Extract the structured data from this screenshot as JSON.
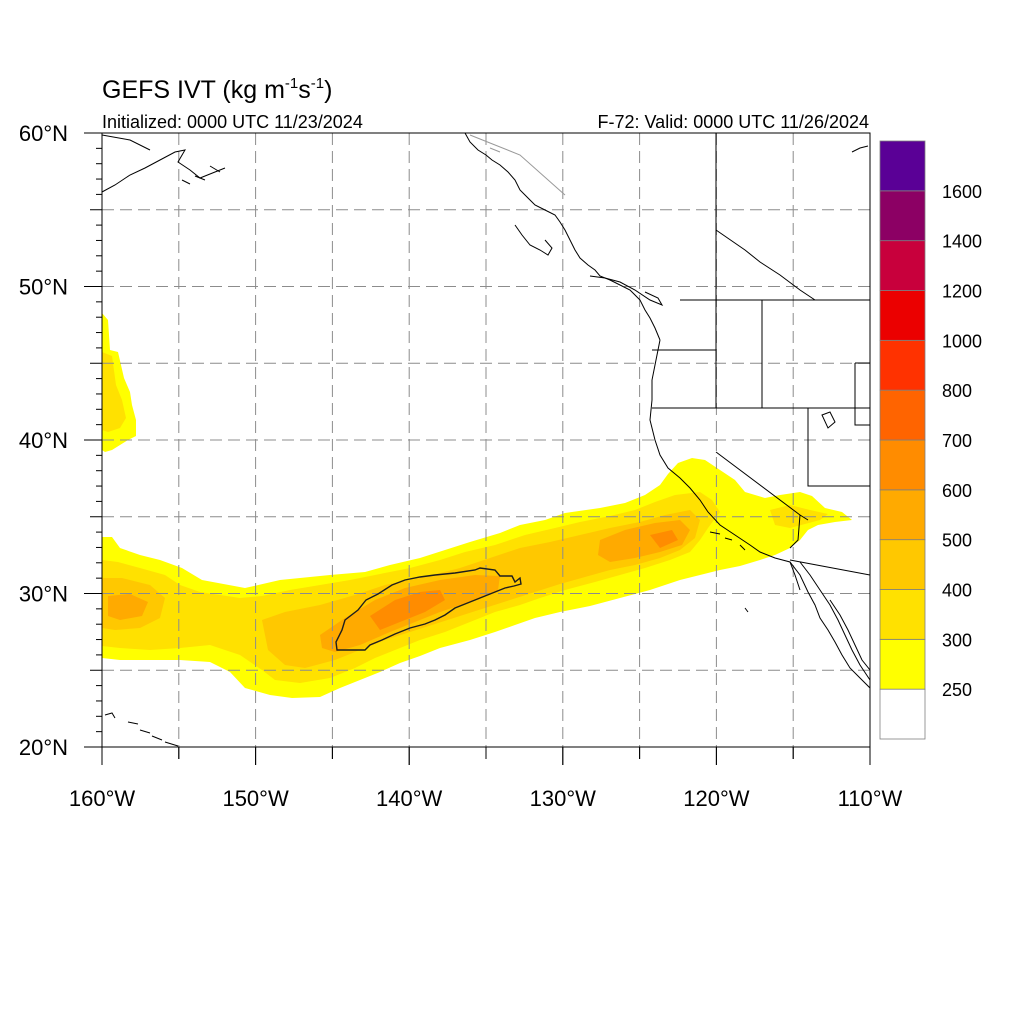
{
  "title": {
    "prefix": "GEFS IVT (kg m",
    "sup1": "-1",
    "mid": "s",
    "sup2": "-1",
    "suffix": ")"
  },
  "initialized": "Initialized: 0000 UTC 11/23/2024",
  "valid": "F-72: Valid: 0000 UTC 11/26/2024",
  "map": {
    "lon_range": [
      -160,
      -110
    ],
    "lat_range": [
      20,
      60
    ],
    "lon_ticks": [
      "160°W",
      "150°W",
      "140°W",
      "130°W",
      "120°W",
      "110°W"
    ],
    "lat_ticks": [
      "20°N",
      "30°N",
      "40°N",
      "50°N",
      "60°N"
    ],
    "gridlines": "dashed every 5°",
    "field": "Integrated vapor transport (IVT) shaded",
    "contour_level": 500
  },
  "colorbar": {
    "labels": [
      "250",
      "300",
      "400",
      "500",
      "600",
      "700",
      "800",
      "1000",
      "1200",
      "1400",
      "1600"
    ],
    "colors": [
      "#ffffff",
      "#ffff00",
      "#ffe100",
      "#ffc800",
      "#ffaa00",
      "#ff8c00",
      "#ff6400",
      "#ff3200",
      "#eb0000",
      "#c8003c",
      "#8c0064",
      "#5a0096"
    ]
  }
}
